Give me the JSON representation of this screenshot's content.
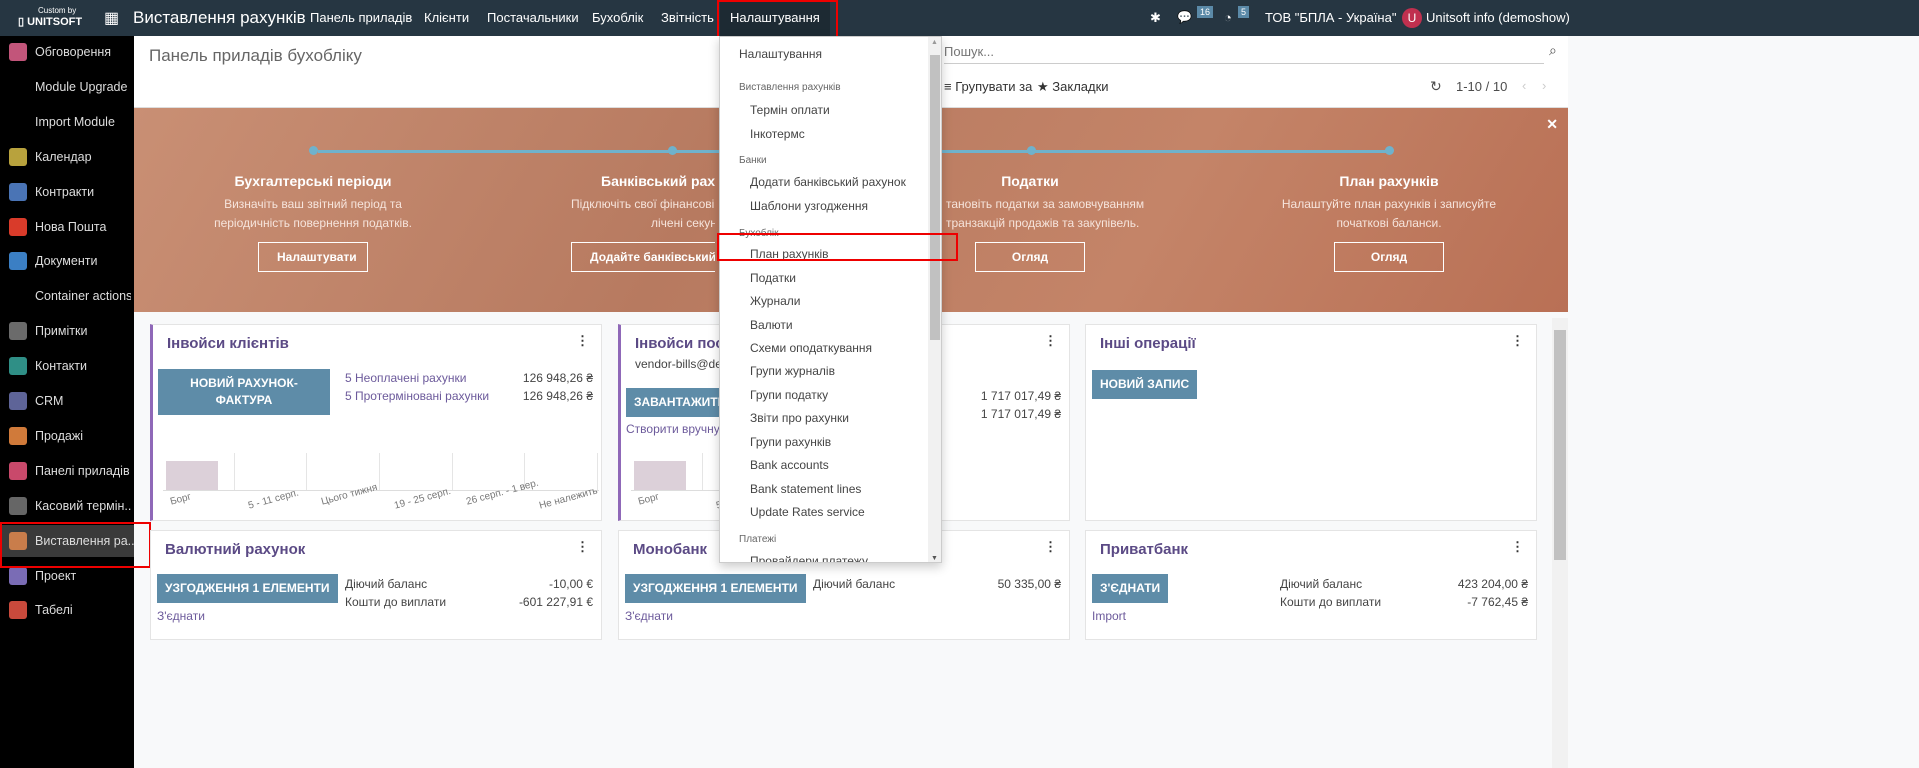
{
  "topbar": {
    "logo_small": "Custom by",
    "logo_big": "UNITSOFT",
    "app_title": "Виставлення рахунків",
    "menu": [
      "Панель приладів",
      "Клієнти",
      "Постачальники",
      "Бухоблік",
      "Звітність",
      "Налаштування"
    ],
    "messages_count": "16",
    "activities_count": "5",
    "company": "ТОВ \"БПЛА - Україна\"",
    "user_initial": "U",
    "user": "Unitsoft info (demoshow)"
  },
  "sidebar": {
    "items": [
      {
        "label": "Обговорення",
        "color": "#c2557a"
      },
      {
        "label": "Module Upgrade",
        "color": ""
      },
      {
        "label": "Import Module",
        "color": ""
      },
      {
        "label": "Календар",
        "color": "#b8a23d"
      },
      {
        "label": "Контракти",
        "color": "#4a74b5"
      },
      {
        "label": "Нова Пошта",
        "color": "#d93b2a"
      },
      {
        "label": "Документи",
        "color": "#3b7fc4"
      },
      {
        "label": "Container actions",
        "color": ""
      },
      {
        "label": "Примітки",
        "color": "#6b6b6b"
      },
      {
        "label": "Контакти",
        "color": "#2f8f86"
      },
      {
        "label": "CRM",
        "color": "#5e6498"
      },
      {
        "label": "Продажі",
        "color": "#d07a3a"
      },
      {
        "label": "Панелі приладів",
        "color": "#c9496b"
      },
      {
        "label": "Касовий термін...",
        "color": "#666"
      },
      {
        "label": "Виставлення ра...",
        "color": "#c97d4b"
      },
      {
        "label": "Проект",
        "color": "#7a6cb5"
      },
      {
        "label": "Табелі",
        "color": "#c94a3c"
      }
    ]
  },
  "control": {
    "title": "Панель приладів бухобліку",
    "search_placeholder": "Пошук...",
    "group_by": "Групувати за",
    "favorites": "Закладки",
    "pager": "1-10 / 10"
  },
  "banner": {
    "steps": [
      {
        "title": "Бухгалтерські періоди",
        "text1": "Визначіть ваш звітний період та",
        "text2": "періодичність повернення податків.",
        "button": "Налаштувати"
      },
      {
        "title": "Банківський раху",
        "text1": "Підключіть свої фінансові р",
        "text2": "лічені секунди.",
        "button": "Додайте банківський р"
      },
      {
        "title": "Податки",
        "text1": "тановіть податки за замовчуванням",
        "text2": "транзакцій продажів та закупівель.",
        "button": "Огляд"
      },
      {
        "title": "План рахунків",
        "text1": "Налаштуйте план рахунків і записуйте",
        "text2": "початкові баланси.",
        "button": "Огляд"
      }
    ]
  },
  "cards": {
    "customer": {
      "title": "Інвойси клієнтів",
      "button": "НОВИЙ РАХУНОК-ФАКТУРА",
      "unpaid": "5 Неоплачені рахунки",
      "unpaid_val": "126 948,26 ₴",
      "overdue": "5 Протерміновані рахунки",
      "overdue_val": "126 948,26 ₴"
    },
    "vendor": {
      "title": "Інвойси пост",
      "email": "vendor-bills@de",
      "button": "ЗАВАНТАЖИТИ",
      "manual": "Створити вручну",
      "val1": "1 717 017,49 ₴",
      "val2": "1 717 017,49 ₴"
    },
    "misc": {
      "title": "Інші операції",
      "button": "НОВИЙ ЗАПИС"
    },
    "currency": {
      "title": "Валютний рахунок",
      "button": "УЗГОДЖЕННЯ 1 ЕЛЕМЕНТИ",
      "balance_label": "Діючий баланс",
      "balance": "-10,00 €",
      "payable_label": "Кошти до виплати",
      "payable": "-601 227,91 €",
      "link": "З'єднати"
    },
    "mono": {
      "title": "Монобанк",
      "button": "УЗГОДЖЕННЯ 1 ЕЛЕМЕНТИ",
      "balance_label": "Діючий баланс",
      "balance": "50 335,00 ₴",
      "link": "З'єднати"
    },
    "privat": {
      "title": "Приватбанк",
      "button": "З'ЄДНАТИ",
      "balance_label": "Діючий баланс",
      "balance": "423 204,00 ₴",
      "payable_label": "Кошти до виплати",
      "payable": "-7 762,45 ₴",
      "link": "Import"
    },
    "chart_labels": [
      "Борг",
      "5 - 11 серп.",
      "Цього тижня",
      "19 - 25 серп.",
      "26 серп. - 1 вер.",
      "Не належить"
    ]
  },
  "dropdown": {
    "top": "Налаштування",
    "sections": [
      {
        "header": "Виставлення рахунків",
        "items": [
          "Термін оплати",
          "Інкотермс"
        ]
      },
      {
        "header": "Банки",
        "items": [
          "Додати банківський рахунок",
          "Шаблони узгодження"
        ]
      },
      {
        "header": "Бухоблік",
        "items": [
          "План рахунків",
          "Податки",
          "Журнали",
          "Валюти",
          "Схеми оподаткування",
          "Групи журналів",
          "Групи податку",
          "Звіти про рахунки",
          "Групи рахунків",
          "Bank accounts",
          "Bank statement lines",
          "Update Rates service"
        ]
      },
      {
        "header": "Платежі",
        "items": [
          "Провайдери платежу"
        ]
      }
    ]
  }
}
